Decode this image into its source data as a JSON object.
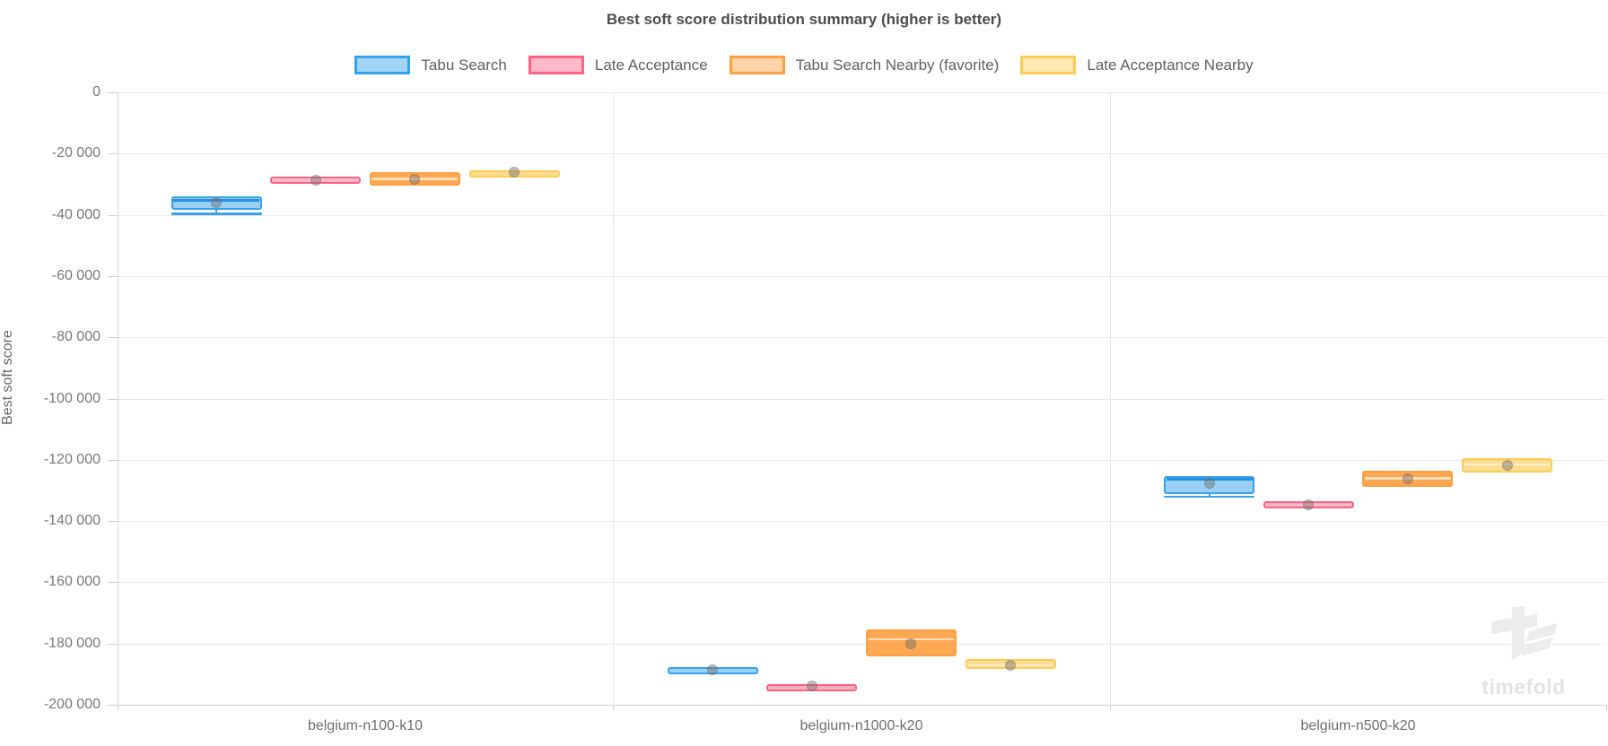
{
  "title": "Best soft score distribution summary (higher is better)",
  "watermark": {
    "text": "timefold"
  },
  "chart_data": {
    "type": "boxplot",
    "title": "Best soft score distribution summary (higher is better)",
    "xlabel": "",
    "ylabel": "Best soft score",
    "ylim": [
      -200000,
      0
    ],
    "grid": true,
    "legend_position": "top",
    "yticks": [
      0,
      -20000,
      -40000,
      -60000,
      -80000,
      -100000,
      -120000,
      -140000,
      -160000,
      -180000,
      -200000
    ],
    "ytick_labels": [
      "0",
      "-20 000",
      "-40 000",
      "-60 000",
      "-80 000",
      "-100 000",
      "-120 000",
      "-140 000",
      "-160 000",
      "-180 000",
      "-200 000"
    ],
    "categories": [
      "belgium-n100-k10",
      "belgium-n1000-k20",
      "belgium-n500-k20"
    ],
    "series": [
      {
        "name": "Tabu Search",
        "color": "#36A2EB",
        "fill": "rgba(54,162,235,0.5)",
        "legend_fill": "rgba(54,162,235,0.45)",
        "median_color": "#2492e0",
        "boxes": [
          {
            "min": -39700,
            "q1": -38500,
            "median": -35300,
            "q3": -34100,
            "max": -34100,
            "mean": -36000
          },
          {
            "min": -189500,
            "q1": -189500,
            "median": -188600,
            "q3": -187800,
            "max": -187800,
            "mean": -188600
          },
          {
            "min": -132100,
            "q1": -131300,
            "median": -126400,
            "q3": -125200,
            "max": -125200,
            "mean": -127600
          }
        ]
      },
      {
        "name": "Late Acceptance",
        "color": "#FF6384",
        "fill": "rgba(255,99,132,0.5)",
        "legend_fill": "rgba(255,99,132,0.45)",
        "median_color": "rgba(255,190,205,0.9)",
        "boxes": [
          {
            "min": -30000,
            "q1": -30000,
            "median": -28600,
            "q3": -27400,
            "max": -27400,
            "mean": -28600
          },
          {
            "min": -194500,
            "q1": -194500,
            "median": -193900,
            "q3": -193200,
            "max": -193200,
            "mean": -193900
          },
          {
            "min": -135900,
            "q1": -135900,
            "median": -134700,
            "q3": -133500,
            "max": -133500,
            "mean": -134700
          }
        ]
      },
      {
        "name": "Tabu Search Nearby (favorite)",
        "color": "#FF9F40",
        "fill": "rgba(255,159,64,0.9)",
        "legend_fill": "rgba(255,159,64,0.45)",
        "median_color": "rgba(255,233,205,0.85)",
        "boxes": [
          {
            "min": -30500,
            "q1": -30500,
            "median": -28300,
            "q3": -26200,
            "max": -26200,
            "mean": -28300
          },
          {
            "min": -184200,
            "q1": -184200,
            "median": -178600,
            "q3": -175500,
            "max": -175500,
            "mean": -180200
          },
          {
            "min": -128700,
            "q1": -128700,
            "median": -126100,
            "q3": -123500,
            "max": -123500,
            "mean": -126100
          }
        ]
      },
      {
        "name": "Late Acceptance Nearby",
        "color": "#FFCD56",
        "fill": "rgba(255,205,86,0.65)",
        "legend_fill": "rgba(255,205,86,0.45)",
        "median_color": "rgba(255,240,210,0.9)",
        "boxes": [
          {
            "min": -27200,
            "q1": -27200,
            "median": -26100,
            "q3": -25500,
            "max": -25500,
            "mean": -26100
          },
          {
            "min": -188300,
            "q1": -188300,
            "median": -187100,
            "q3": -185200,
            "max": -185200,
            "mean": -187100
          },
          {
            "min": -124200,
            "q1": -124200,
            "median": -121500,
            "q3": -119600,
            "max": -119600,
            "mean": -121900
          }
        ]
      }
    ]
  }
}
